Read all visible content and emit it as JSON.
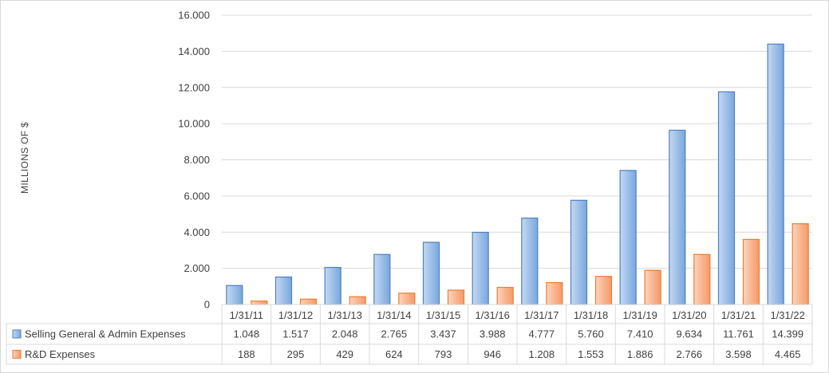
{
  "chart_data": {
    "type": "bar",
    "title": "",
    "xlabel": "",
    "ylabel": "MILLIONS OF $",
    "ylim": [
      0,
      16000
    ],
    "yticks": [
      0,
      2000,
      4000,
      6000,
      8000,
      10000,
      12000,
      14000,
      16000
    ],
    "ytick_labels": [
      "0",
      "2.000",
      "4.000",
      "6.000",
      "8.000",
      "10.000",
      "12.000",
      "14.000",
      "16.000"
    ],
    "grid": true,
    "legend": "data-table",
    "categories": [
      "1/31/11",
      "1/31/12",
      "1/31/13",
      "1/31/14",
      "1/31/15",
      "1/31/16",
      "1/31/17",
      "1/31/18",
      "1/31/19",
      "1/31/20",
      "1/31/21",
      "1/31/22"
    ],
    "series": [
      {
        "name": "Selling General & Admin Expenses",
        "color": "#8db3e2",
        "edge_color": "#4f81bd",
        "values": [
          1048,
          1517,
          2048,
          2765,
          3437,
          3988,
          4777,
          5760,
          7410,
          9634,
          11761,
          14399
        ],
        "labels": [
          "1.048",
          "1.517",
          "2.048",
          "2.765",
          "3.437",
          "3.988",
          "4.777",
          "5.760",
          "7.410",
          "9.634",
          "11.761",
          "14.399"
        ]
      },
      {
        "name": "R&D Expenses",
        "color": "#f9b08a",
        "edge_color": "#ed7d31",
        "values": [
          188,
          295,
          429,
          624,
          793,
          946,
          1208,
          1553,
          1886,
          2766,
          3598,
          4465
        ],
        "labels": [
          "188",
          "295",
          "429",
          "624",
          "793",
          "946",
          "1.208",
          "1.553",
          "1.886",
          "2.766",
          "3.598",
          "4.465"
        ]
      }
    ]
  }
}
